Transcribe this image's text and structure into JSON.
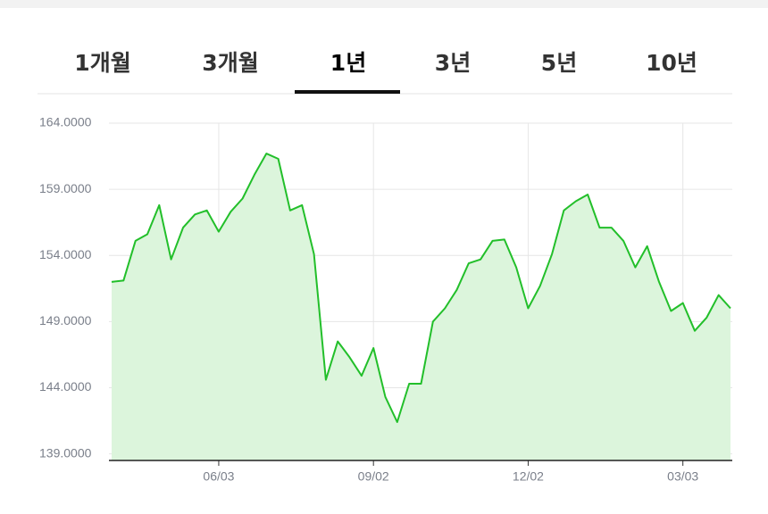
{
  "tabs": [
    "1개월",
    "3개월",
    "1년",
    "3년",
    "5년",
    "10년"
  ],
  "selected_tab": 2,
  "chart_data": {
    "type": "area",
    "categories": [
      null,
      null,
      null,
      null,
      null,
      null,
      null,
      null,
      null,
      "06/03",
      null,
      null,
      null,
      null,
      null,
      null,
      null,
      null,
      null,
      null,
      null,
      null,
      "09/02",
      null,
      null,
      null,
      null,
      null,
      null,
      null,
      null,
      null,
      null,
      null,
      null,
      "12/02",
      null,
      null,
      null,
      null,
      null,
      null,
      null,
      null,
      null,
      null,
      null,
      null,
      "03/03",
      null,
      null,
      null,
      null
    ],
    "values": [
      152.0,
      152.1,
      155.1,
      155.6,
      157.8,
      153.7,
      156.1,
      157.1,
      157.4,
      155.8,
      157.3,
      158.3,
      160.1,
      161.7,
      161.3,
      157.4,
      157.8,
      154.1,
      144.6,
      147.5,
      146.3,
      144.9,
      147.0,
      143.3,
      141.4,
      144.3,
      144.3,
      149.0,
      150.0,
      151.4,
      153.4,
      153.7,
      155.1,
      155.2,
      153.1,
      150.0,
      151.7,
      154.1,
      157.4,
      158.1,
      158.6,
      156.1,
      156.1,
      155.1,
      153.1,
      154.7,
      152.0,
      149.8,
      150.4,
      148.3,
      149.3,
      151.0,
      150.0
    ],
    "color": "#22bf2a",
    "fill": "#dcf5dc",
    "ylim": [
      138.5,
      164
    ],
    "yticks": [
      {
        "value": 139,
        "label": "139.0000"
      },
      {
        "value": 144,
        "label": "144.0000"
      },
      {
        "value": 149,
        "label": "149.0000"
      },
      {
        "value": 154,
        "label": "154.0000"
      },
      {
        "value": 159,
        "label": "159.0000"
      },
      {
        "value": 164,
        "label": "164.0000"
      }
    ],
    "grid": true
  }
}
